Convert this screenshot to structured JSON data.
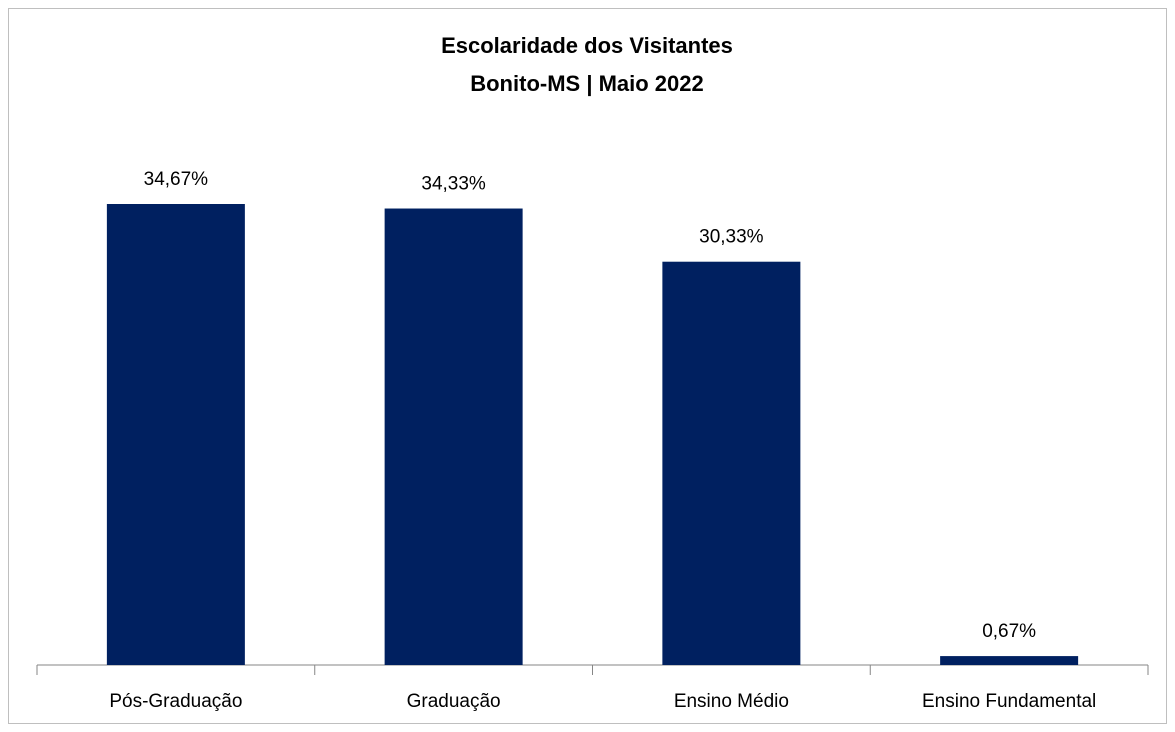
{
  "chart_data": {
    "type": "bar",
    "title": "Escolaridade dos Visitantes",
    "subtitle": "Bonito-MS | Maio 2022",
    "categories": [
      "Pós-Graduação",
      "Graduação",
      "Ensino Médio",
      "Ensino Fundamental"
    ],
    "values": [
      34.67,
      34.33,
      30.33,
      0.67
    ],
    "value_labels": [
      "34,67%",
      "34,33%",
      "30,33%",
      "0,67%"
    ],
    "color": "#002060"
  }
}
